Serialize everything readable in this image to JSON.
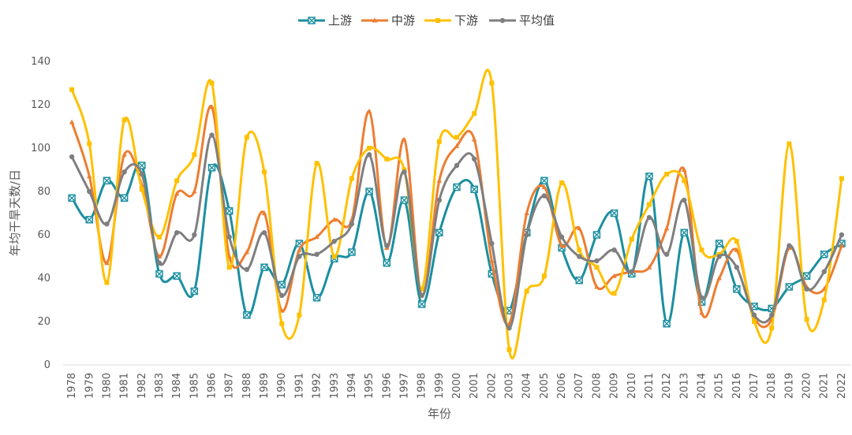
{
  "chart_data": {
    "type": "line",
    "xlabel": "年份",
    "ylabel": "年均干旱天数/日",
    "ylim": [
      0,
      140
    ],
    "yticks": [
      0,
      20,
      40,
      60,
      80,
      100,
      120,
      140
    ],
    "grid": false,
    "legend_position": "top-center",
    "smooth": true,
    "categories": [
      "1978",
      "1979",
      "1980",
      "1981",
      "1982",
      "1983",
      "1984",
      "1985",
      "1986",
      "1987",
      "1988",
      "1989",
      "1990",
      "1991",
      "1992",
      "1993",
      "1994",
      "1995",
      "1996",
      "1997",
      "1998",
      "1999",
      "2000",
      "2001",
      "2002",
      "2003",
      "2004",
      "2005",
      "2006",
      "2007",
      "2008",
      "2009",
      "2010",
      "2011",
      "2012",
      "2013",
      "2014",
      "2015",
      "2016",
      "2017",
      "2018",
      "2019",
      "2020",
      "2021",
      "2022"
    ],
    "series": [
      {
        "name": "上游",
        "color": "#1b8fa0",
        "marker": "x-square",
        "values": [
          77,
          67,
          85,
          77,
          92,
          42,
          41,
          34,
          91,
          71,
          23,
          45,
          37,
          56,
          31,
          49,
          52,
          80,
          47,
          76,
          28,
          61,
          82,
          81,
          42,
          25,
          61,
          85,
          54,
          39,
          60,
          70,
          42,
          87,
          19,
          61,
          29,
          56,
          35,
          27,
          26,
          36,
          41,
          51,
          56
        ]
      },
      {
        "name": "中游",
        "color": "#ed7d31",
        "marker": "triangle",
        "values": [
          112,
          87,
          47,
          97,
          83,
          50,
          79,
          80,
          119,
          50,
          52,
          70,
          25,
          53,
          59,
          67,
          67,
          117,
          54,
          104,
          32,
          85,
          101,
          104,
          48,
          19,
          70,
          82,
          55,
          63,
          36,
          41,
          43,
          45,
          63,
          90,
          24,
          40,
          53,
          22,
          21,
          54,
          36,
          35,
          55
        ]
      },
      {
        "name": "下游",
        "color": "#ffc000",
        "marker": "square",
        "values": [
          127,
          102,
          38,
          113,
          81,
          59,
          85,
          97,
          130,
          45,
          105,
          89,
          19,
          23,
          93,
          50,
          86,
          100,
          95,
          90,
          35,
          103,
          105,
          116,
          130,
          7,
          34,
          41,
          84,
          53,
          45,
          33,
          58,
          74,
          88,
          85,
          53,
          51,
          57,
          20,
          17,
          102,
          21,
          30,
          86
        ]
      },
      {
        "name": "平均值",
        "color": "#7f7f7f",
        "marker": "circle",
        "values": [
          96,
          80,
          65,
          89,
          88,
          47,
          61,
          60,
          106,
          59,
          44,
          61,
          32,
          50,
          51,
          57,
          65,
          97,
          55,
          89,
          32,
          76,
          92,
          95,
          56,
          17,
          60,
          78,
          59,
          50,
          48,
          53,
          43,
          68,
          51,
          76,
          31,
          50,
          45,
          23,
          23,
          55,
          35,
          43,
          60
        ]
      }
    ]
  }
}
